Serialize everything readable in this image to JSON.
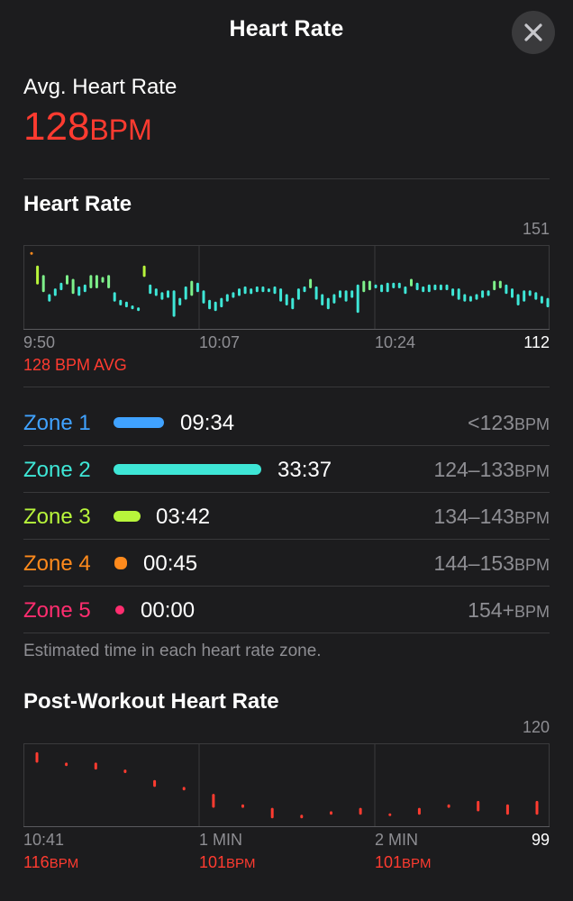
{
  "header": {
    "title": "Heart Rate",
    "close_icon": "close-icon"
  },
  "summary": {
    "label": "Avg. Heart Rate",
    "value": "128",
    "unit": "BPM"
  },
  "hr_chart": {
    "title": "Heart Rate",
    "y_max_label": "151",
    "y_min_label": "112",
    "x_labels": [
      "9:50",
      "10:07",
      "10:24"
    ],
    "avg_label": "128 BPM AVG"
  },
  "zones": [
    {
      "name": "Zone 1",
      "time": "09:34",
      "range": "<123",
      "unit": "BPM",
      "color": "#40a2ff"
    },
    {
      "name": "Zone 2",
      "time": "33:37",
      "range": "124–133",
      "unit": "BPM",
      "color": "#3ee6d6"
    },
    {
      "name": "Zone 3",
      "time": "03:42",
      "range": "134–143",
      "unit": "BPM",
      "color": "#b8f53b"
    },
    {
      "name": "Zone 4",
      "time": "00:45",
      "range": "144–153",
      "unit": "BPM",
      "color": "#ff8a1c"
    },
    {
      "name": "Zone 5",
      "time": "00:00",
      "range": "154+",
      "unit": "BPM",
      "color": "#ff2d6f"
    }
  ],
  "zones_footnote": "Estimated time in each heart rate zone.",
  "post_chart": {
    "title": "Post-Workout Heart Rate",
    "y_max_label": "120",
    "y_min_label": "99",
    "x_labels": [
      "10:41",
      "1 MIN",
      "2 MIN"
    ],
    "sub_values": [
      "116",
      "101",
      "101"
    ],
    "sub_unit": "BPM"
  },
  "chart_data": [
    {
      "type": "bar",
      "title": "Heart Rate",
      "ylim": [
        112,
        151
      ],
      "x": [
        "9:50",
        "10:07",
        "10:24"
      ],
      "series": [
        {
          "values": [
            [
              149,
              150
            ],
            [
              133,
              143
            ],
            [
              129,
              138
            ],
            [
              124,
              128
            ],
            [
              127,
              131
            ],
            [
              130,
              134
            ],
            [
              133,
              138
            ],
            [
              128,
              136
            ],
            [
              127,
              132
            ],
            [
              129,
              133
            ],
            [
              131,
              138
            ],
            [
              131,
              138
            ],
            [
              134,
              137
            ],
            [
              131,
              138
            ],
            [
              124,
              129
            ],
            [
              122,
              125
            ],
            [
              121,
              124
            ],
            [
              120,
              122
            ],
            [
              119,
              121
            ],
            [
              137,
              143
            ],
            [
              128,
              133
            ],
            [
              127,
              131
            ],
            [
              125,
              129
            ],
            [
              126,
              130
            ],
            [
              116,
              130
            ],
            [
              122,
              126
            ],
            [
              125,
              132
            ],
            [
              127,
              135
            ],
            [
              129,
              134
            ],
            [
              123,
              130
            ],
            [
              120,
              125
            ],
            [
              119,
              124
            ],
            [
              121,
              126
            ],
            [
              124,
              128
            ],
            [
              126,
              129
            ],
            [
              127,
              131
            ],
            [
              128,
              132
            ],
            [
              128,
              131
            ],
            [
              129,
              132
            ],
            [
              129,
              132
            ],
            [
              129,
              131
            ],
            [
              128,
              132
            ],
            [
              124,
              131
            ],
            [
              122,
              128
            ],
            [
              120,
              126
            ],
            [
              125,
              131
            ],
            [
              129,
              132
            ],
            [
              131,
              136
            ],
            [
              125,
              132
            ],
            [
              122,
              128
            ],
            [
              120,
              126
            ],
            [
              123,
              128
            ],
            [
              126,
              130
            ],
            [
              124,
              130
            ],
            [
              126,
              130
            ],
            [
              118,
              133
            ],
            [
              129,
              135
            ],
            [
              130,
              135
            ],
            [
              131,
              133
            ],
            [
              129,
              133
            ],
            [
              129,
              134
            ],
            [
              131,
              134
            ],
            [
              131,
              134
            ],
            [
              128,
              132
            ],
            [
              132,
              136
            ],
            [
              130,
              134
            ],
            [
              129,
              132
            ],
            [
              129,
              133
            ],
            [
              130,
              133
            ],
            [
              130,
              133
            ],
            [
              130,
              133
            ],
            [
              127,
              131
            ],
            [
              125,
              131
            ],
            [
              124,
              128
            ],
            [
              124,
              127
            ],
            [
              125,
              128
            ],
            [
              126,
              130
            ],
            [
              127,
              130
            ],
            [
              130,
              135
            ],
            [
              131,
              135
            ],
            [
              128,
              133
            ],
            [
              126,
              131
            ],
            [
              122,
              128
            ],
            [
              124,
              130
            ],
            [
              127,
              130
            ],
            [
              125,
              129
            ],
            [
              123,
              127
            ],
            [
              121,
              126
            ]
          ]
        }
      ]
    },
    {
      "type": "bar",
      "title": "Post-Workout Heart Rate",
      "ylim": [
        99,
        120
      ],
      "x": [
        "10:41",
        "1 MIN",
        "2 MIN"
      ],
      "series": [
        {
          "values": [
            [
              116,
              119
            ],
            [
              115,
              116
            ],
            [
              114,
              116
            ],
            [
              113,
              114
            ],
            [
              109,
              111
            ],
            [
              108,
              109
            ],
            [
              103,
              107
            ],
            [
              103,
              104
            ],
            [
              100,
              103
            ],
            [
              100,
              101
            ],
            [
              101,
              102
            ],
            [
              101,
              103
            ],
            [
              101,
              101
            ],
            [
              101,
              103
            ],
            [
              103,
              104
            ],
            [
              102,
              105
            ],
            [
              101,
              104
            ],
            [
              101,
              105
            ]
          ]
        }
      ]
    }
  ]
}
